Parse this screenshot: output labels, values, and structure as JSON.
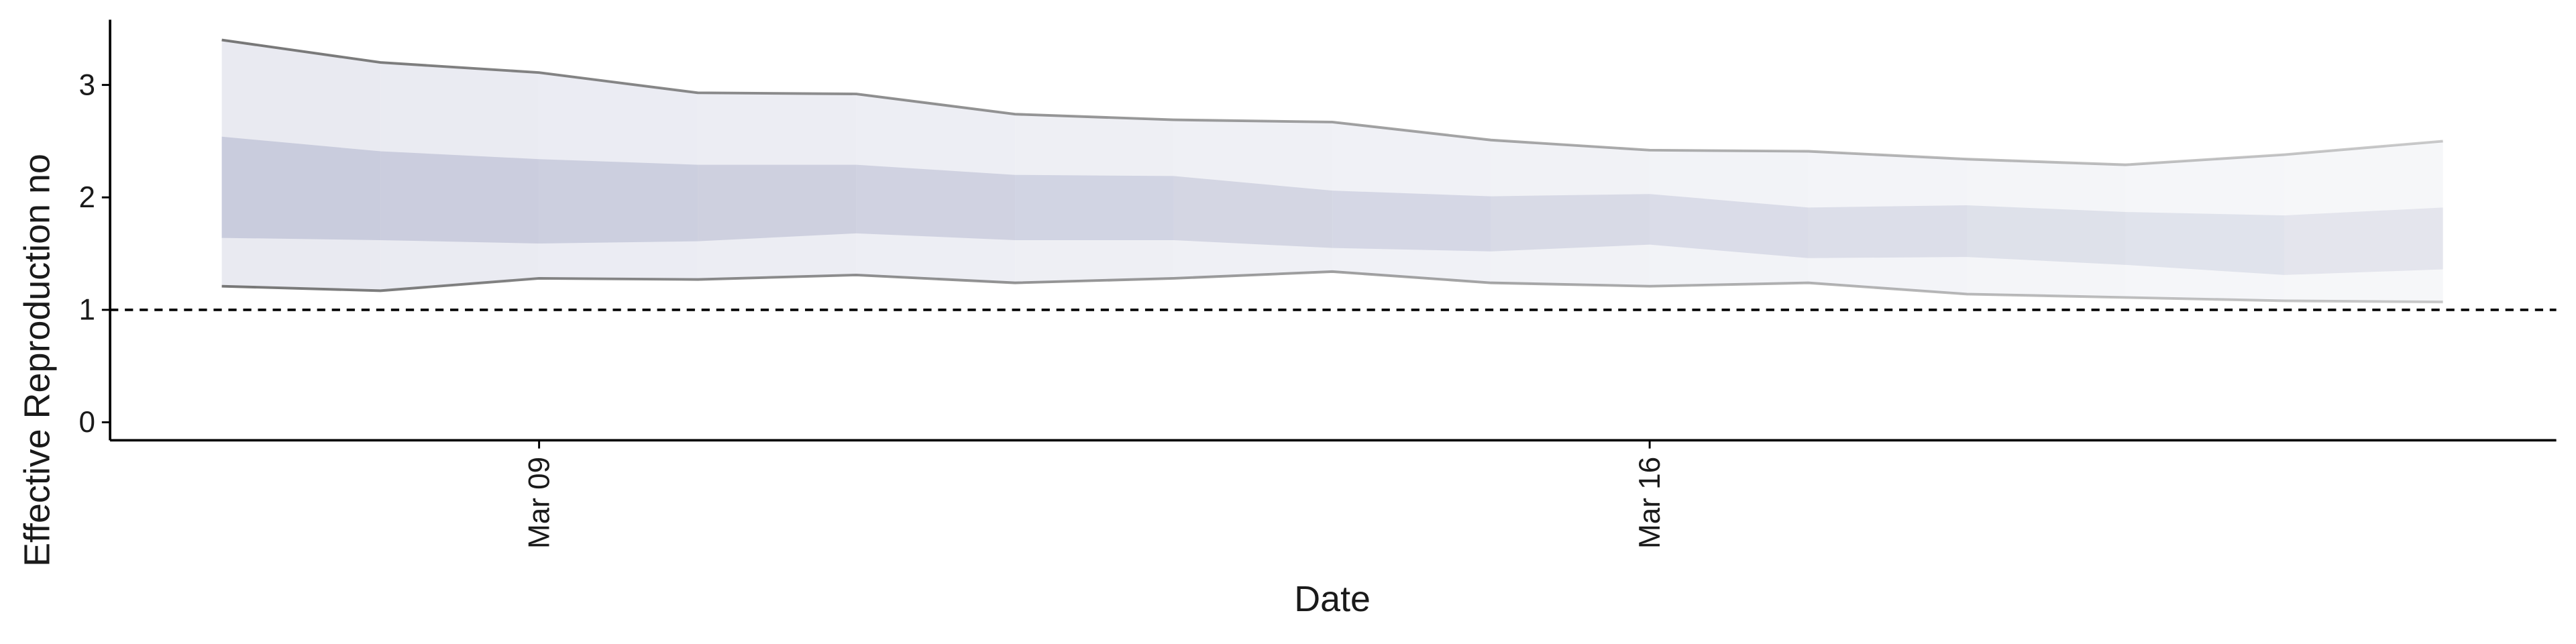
{
  "chart_data": {
    "type": "area",
    "x_label": "Date",
    "y_label": "Effective Reproduction no",
    "categories": [
      null,
      null,
      "Mar 09",
      null,
      null,
      null,
      null,
      null,
      null,
      "Mar 16",
      null,
      null,
      null,
      null,
      null
    ],
    "bands": [
      {
        "color": "#e8eaf1",
        "line_color": "#777777",
        "upper": [
          3.4,
          3.2,
          3.11,
          2.93,
          2.92,
          2.74,
          2.69,
          2.67,
          2.51,
          2.42,
          2.41,
          2.34,
          2.29,
          2.38,
          2.5
        ],
        "lower": [
          1.21,
          1.17,
          1.28,
          1.27,
          1.31,
          1.24,
          1.28,
          1.34,
          1.24,
          1.21,
          1.24,
          1.14,
          1.11,
          1.08,
          1.07
        ]
      },
      {
        "color": "#c8cbdc",
        "upper": [
          2.54,
          2.41,
          2.34,
          2.29,
          2.29,
          2.2,
          2.19,
          2.06,
          2.01,
          2.03,
          1.91,
          1.93,
          1.87,
          1.84,
          1.91
        ],
        "lower": [
          1.64,
          1.62,
          1.59,
          1.61,
          1.68,
          1.62,
          1.62,
          1.55,
          1.52,
          1.58,
          1.46,
          1.47,
          1.4,
          1.31,
          1.36
        ]
      }
    ],
    "hline": 1,
    "ylim": [
      -0.16,
      3.58
    ],
    "yticks": [
      0,
      1,
      2,
      3
    ],
    "fade": true
  }
}
